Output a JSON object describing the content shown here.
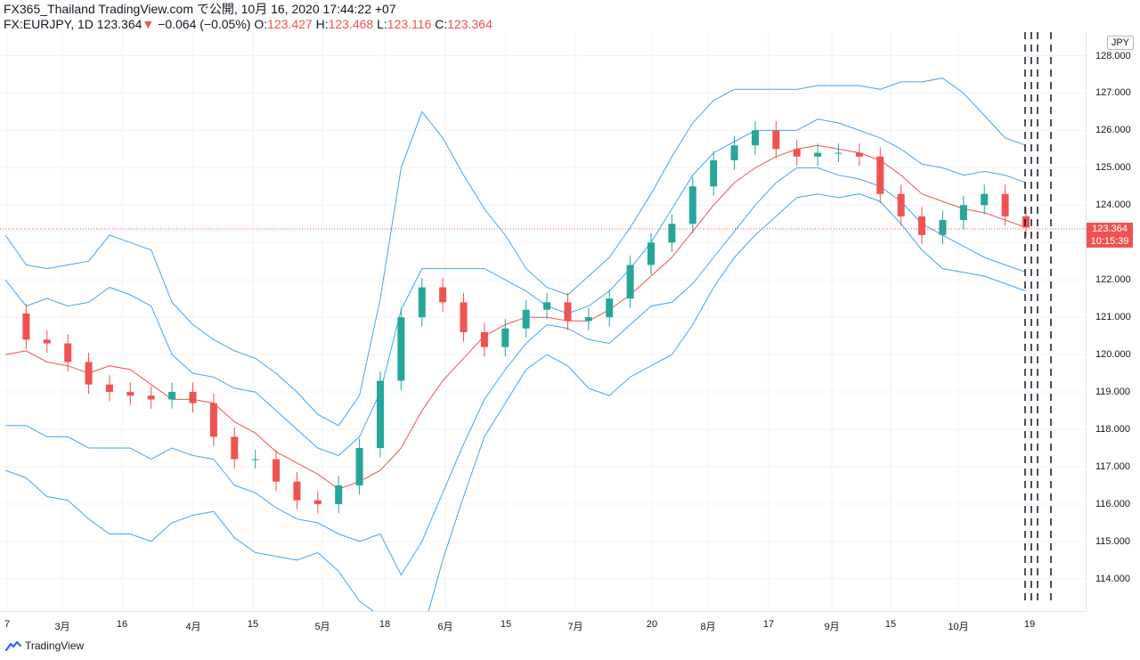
{
  "header": {
    "line1": "FX365_Thailand TradingView.com で公開, 10月 16, 2020 17:44:22 +07",
    "symbol": "FX:EURJPY, 1D",
    "last": "123.364",
    "down_icon": "▼",
    "change": "−0.064 (−0.05%)",
    "o_label": "O:",
    "o_val": "123.427",
    "h_label": "H:",
    "h_val": "123.468",
    "l_label": "L:",
    "l_val": "123.116",
    "c_label": "C:",
    "c_val": "123.364"
  },
  "axis": {
    "unit": "JPY",
    "ticks": [
      "128.000",
      "127.000",
      "126.000",
      "125.000",
      "124.000",
      "123.000",
      "122.000",
      "121.000",
      "120.000",
      "119.000",
      "118.000",
      "117.000",
      "116.000",
      "115.000",
      "114.000"
    ],
    "last_price_tag": "123.364",
    "countdown_tag": "10:15:39",
    "time_labels": [
      "7",
      "3月",
      "16",
      "4月",
      "15",
      "5月",
      "18",
      "6月",
      "15",
      "7月",
      "20",
      "8月",
      "17",
      "9月",
      "15",
      "10月",
      "19"
    ]
  },
  "footer": {
    "brand": "TradingView"
  },
  "chart_data": {
    "type": "line",
    "ylim": [
      113.2,
      128.5
    ],
    "series": [
      {
        "values": [
          121.1,
          120.4,
          120.3,
          119.8,
          119.2,
          119.0,
          118.9,
          118.8,
          119.0,
          118.7,
          117.8,
          117.2,
          117.2,
          116.6,
          116.1,
          116.0,
          116.5,
          117.5,
          119.3,
          121.0,
          121.8,
          121.4,
          120.6,
          120.2,
          120.7,
          121.2,
          121.4,
          120.9,
          121.0,
          121.5,
          122.4,
          123.0,
          123.5,
          124.5,
          125.2,
          125.6,
          126.0,
          125.5,
          125.3,
          125.4,
          125.4,
          125.3,
          124.3,
          123.7,
          123.2,
          123.6,
          124.0,
          124.3,
          123.7,
          123.4
        ]
      },
      {
        "values": [
          120.0,
          120.1,
          119.8,
          119.7,
          119.5,
          119.7,
          119.6,
          119.2,
          118.8,
          118.8,
          118.7,
          118.2,
          117.9,
          117.4,
          117.1,
          116.8,
          116.4,
          116.6,
          116.9,
          117.5,
          118.5,
          119.3,
          119.9,
          120.5,
          120.8,
          121.0,
          121.0,
          120.9,
          120.9,
          121.2,
          121.6,
          122.1,
          122.6,
          123.3,
          124.0,
          124.6,
          125.0,
          125.3,
          125.5,
          125.6,
          125.5,
          125.4,
          125.2,
          124.8,
          124.3,
          124.1,
          123.9,
          123.8,
          123.6,
          123.4
        ]
      },
      {
        "values": [
          122.0,
          121.3,
          121.5,
          121.3,
          121.4,
          121.8,
          121.6,
          121.3,
          120.0,
          119.5,
          119.4,
          119.1,
          119.0,
          118.5,
          118.0,
          117.5,
          117.3,
          117.8,
          119.0,
          121.2,
          122.3,
          122.3,
          122.3,
          122.3,
          122.0,
          121.7,
          121.3,
          121.1,
          121.3,
          121.7,
          122.3,
          123.0,
          123.9,
          124.8,
          125.4,
          125.7,
          126.0,
          126.0,
          126.0,
          126.3,
          126.2,
          126.0,
          125.8,
          125.5,
          125.1,
          125.0,
          124.8,
          124.9,
          124.8,
          124.6
        ]
      },
      {
        "values": [
          123.2,
          122.4,
          122.3,
          122.4,
          122.5,
          123.2,
          123.0,
          122.8,
          121.4,
          120.8,
          120.4,
          120.1,
          119.9,
          119.5,
          119.0,
          118.4,
          118.1,
          118.9,
          121.5,
          125.0,
          126.5,
          125.8,
          124.8,
          123.9,
          123.2,
          122.3,
          121.8,
          121.6,
          122.1,
          122.6,
          123.4,
          124.3,
          125.3,
          126.2,
          126.8,
          127.1,
          127.1,
          127.1,
          127.1,
          127.2,
          127.2,
          127.2,
          127.1,
          127.3,
          127.3,
          127.4,
          127.0,
          126.4,
          125.8,
          125.6
        ]
      },
      {
        "values": [
          118.1,
          118.1,
          117.8,
          117.8,
          117.5,
          117.5,
          117.5,
          117.2,
          117.5,
          117.3,
          117.2,
          116.5,
          116.3,
          115.9,
          115.6,
          115.5,
          115.2,
          115.0,
          115.2,
          114.1,
          115.0,
          116.3,
          117.6,
          118.8,
          119.6,
          120.3,
          120.8,
          120.7,
          120.4,
          120.3,
          120.8,
          121.3,
          121.4,
          121.9,
          122.6,
          123.3,
          124.0,
          124.6,
          125.0,
          125.0,
          124.8,
          124.7,
          124.5,
          124.1,
          123.5,
          123.2,
          122.9,
          122.6,
          122.4,
          122.2
        ]
      },
      {
        "values": [
          116.9,
          116.7,
          116.2,
          116.1,
          115.6,
          115.2,
          115.2,
          115.0,
          115.5,
          115.7,
          115.8,
          115.1,
          114.7,
          114.6,
          114.5,
          114.7,
          114.2,
          113.4,
          113.0,
          112.0,
          112.5,
          114.5,
          116.2,
          117.8,
          118.7,
          119.6,
          120.0,
          119.7,
          119.1,
          118.9,
          119.4,
          119.7,
          120.0,
          120.8,
          121.8,
          122.6,
          123.2,
          123.7,
          124.2,
          124.3,
          124.2,
          124.3,
          124.1,
          123.5,
          122.8,
          122.3,
          122.2,
          122.1,
          121.9,
          121.7
        ]
      }
    ]
  }
}
